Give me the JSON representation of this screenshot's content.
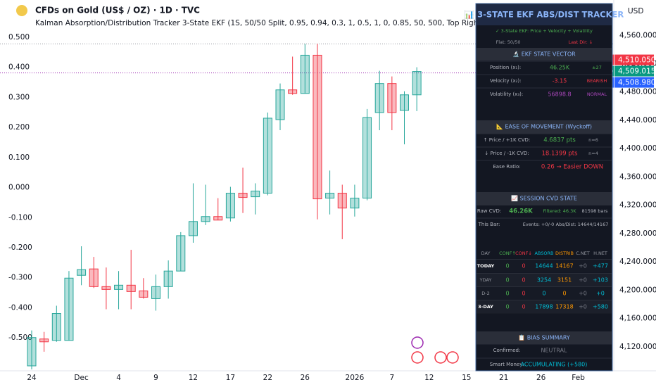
{
  "chart_data": {
    "type": "candlestick",
    "title": "CFDs on Gold (US$ / OZ) · 1D · TVC",
    "subtitle": "Kalman Absorption/Distribution Tracker 3-State EKF (1S, 50/50 Split, 0.95, 0.94, 0.3, 1, 0.5, 1, 0, 0.85, 50, 500, Top Right)",
    "currency": "USD",
    "x": [
      "24",
      null,
      null,
      null,
      "Dec",
      null,
      null,
      "4",
      null,
      null,
      "9",
      null,
      null,
      "12",
      null,
      null,
      "17",
      null,
      null,
      "22",
      null,
      null,
      "26",
      null,
      null,
      null,
      "2026",
      null,
      null,
      "7",
      null,
      null,
      "12",
      null,
      null,
      "15",
      null,
      null,
      "21",
      null,
      null,
      "26",
      null,
      null,
      "Feb"
    ],
    "open": [
      4093,
      4131,
      4129,
      4129,
      4221,
      4230,
      4205,
      4201,
      4207,
      4199,
      4188,
      4205,
      4227,
      4277,
      4297,
      4304,
      4302,
      4337,
      4332,
      4337,
      4441,
      4483,
      4478,
      4532,
      4330,
      4337,
      4316,
      4330,
      4451,
      4492,
      4454,
      4476,
      null,
      null,
      null,
      null,
      null,
      null,
      null,
      null,
      null,
      null,
      null,
      null,
      null
    ],
    "high": [
      4143,
      4141,
      4178,
      4227,
      4262,
      4247,
      4232,
      4227,
      4257,
      4217,
      4222,
      4242,
      4282,
      4351,
      4349,
      4330,
      4346,
      4373,
      4351,
      4451,
      4492,
      4530,
      4548,
      4548,
      4369,
      4349,
      4349,
      4456,
      4510,
      4502,
      4481,
      4515,
      null,
      null,
      null,
      null,
      null,
      null,
      null,
      null,
      null,
      null,
      null,
      null,
      null
    ],
    "low": [
      4088,
      4113,
      4127,
      4129,
      4207,
      4203,
      4173,
      4173,
      4173,
      4188,
      4171,
      4188,
      4227,
      4267,
      4292,
      4299,
      4297,
      4309,
      4307,
      4334,
      4426,
      4476,
      4478,
      4300,
      4307,
      4272,
      4304,
      4327,
      4426,
      4426,
      4406,
      4453,
      null,
      null,
      null,
      null,
      null,
      null,
      null,
      null,
      null,
      null,
      null,
      null,
      null
    ],
    "close": [
      4133,
      4127,
      4167,
      4217,
      4229,
      4205,
      4201,
      4207,
      4198,
      4190,
      4205,
      4227,
      4277,
      4297,
      4304,
      4299,
      4337,
      4331,
      4340,
      4443,
      4483,
      4478,
      4532,
      4329,
      4337,
      4316,
      4330,
      4444,
      4492,
      4451,
      4476,
      4509,
      null,
      null,
      null,
      null,
      null,
      null,
      null,
      null,
      null,
      null,
      null,
      null,
      null
    ],
    "up_color": "#26a69a",
    "down_color": "#f23645",
    "ylim": [
      4088,
      4610
    ],
    "yticks": [
      {
        "value": 4560,
        "label": "4,560.000"
      },
      {
        "value": 4520,
        "label": "4,520.000"
      },
      {
        "value": 4480,
        "label": "4,480.000"
      },
      {
        "value": 4440,
        "label": "4,440.000"
      },
      {
        "value": 4400,
        "label": "4,400.000"
      },
      {
        "value": 4360,
        "label": "4,360.000"
      },
      {
        "value": 4320,
        "label": "4,320.000"
      },
      {
        "value": 4280,
        "label": "4,280.000"
      },
      {
        "value": 4240,
        "label": "4,240.000"
      },
      {
        "value": 4200,
        "label": "4,200.000"
      },
      {
        "value": 4160,
        "label": "4,160.000"
      },
      {
        "value": 4120,
        "label": "4,120.000"
      }
    ],
    "y2lim": [
      -0.605,
      0.624
    ],
    "y2ticks": [
      {
        "value": 0.5,
        "label": "0.500"
      },
      {
        "value": 0.4,
        "label": "0.400"
      },
      {
        "value": 0.3,
        "label": "0.300"
      },
      {
        "value": 0.2,
        "label": "0.200"
      },
      {
        "value": 0.1,
        "label": "0.100"
      },
      {
        "value": 0,
        "label": "0.000"
      },
      {
        "value": -0.1,
        "label": "-0.100"
      },
      {
        "value": -0.2,
        "label": "-0.200"
      },
      {
        "value": -0.3,
        "label": "-0.300"
      },
      {
        "value": -0.4,
        "label": "-0.400"
      },
      {
        "value": -0.5,
        "label": "-0.500"
      }
    ],
    "price_lines": [
      {
        "value": 4548,
        "color": "#9598a1"
      },
      {
        "value": 4507,
        "color": "#9c27b0"
      }
    ],
    "price_tags": [
      {
        "name": "Ask",
        "value": 4510.05,
        "label": "4,510.050",
        "color": "#f23645"
      },
      {
        "name": "GOLD",
        "value": 4509.015,
        "label": "4,509.015",
        "color": "#089981"
      },
      {
        "name": "Bid",
        "value": 4508.98,
        "label": "4,508.980",
        "color": "#2962ff"
      }
    ],
    "grid": false
  },
  "panel": {
    "title": "📊 3-STATE EKF ABS/DIST TRACKER",
    "mode": "✓ 3-State EKF: Price + Velocity + Volatility",
    "flat": "Flat: 50/50",
    "last_dir": "Last Dir: ↓",
    "state": {
      "title": "🔬 EKF STATE VECTOR",
      "rows": [
        [
          "Position (x₁):",
          "46.25K",
          "±27"
        ],
        [
          "Velocity (x₂):",
          "-3.15",
          "BEARISH"
        ],
        [
          "Volatility (x₃):",
          "56898.8",
          "NORMAL"
        ]
      ]
    },
    "ease": {
      "title": "📐 EASE OF MOVEMENT (Wyckoff)",
      "rows": [
        [
          "↑ Price / +1K CVD:",
          "4.6837 pts",
          "n=6"
        ],
        [
          "↓ Price / -1K CVD:",
          "18.1399 pts",
          "n=4"
        ],
        [
          "Ease Ratio:",
          "0.26 → Easier DOWN"
        ]
      ]
    },
    "session": {
      "title": "📈 SESSION CVD STATE",
      "rows": [
        [
          "Raw CVD:",
          "46.26K",
          "Filtered: 46.3K",
          "81598 bars"
        ],
        [
          "This Bar:",
          "Events: +0/-0",
          "Abs/Dist: 14644/14167"
        ]
      ]
    },
    "table": {
      "header": [
        "DAY",
        "CONF↑",
        "CONF↓",
        "ABSORB",
        "DISTRIB",
        "C.NET",
        "H.NET"
      ],
      "rows": [
        [
          "TODAY",
          "0",
          "0",
          "14644",
          "14167",
          "+0",
          "+477"
        ],
        [
          "YDAY",
          "0",
          "0",
          "3254",
          "3151",
          "+0",
          "+103"
        ],
        [
          "D-2",
          "0",
          "0",
          "0",
          "0",
          "+0",
          "+0"
        ],
        [
          "3-DAY",
          "0",
          "0",
          "17898",
          "17318",
          "+0",
          "+580"
        ]
      ]
    },
    "bias": {
      "title": "📋 BIAS SUMMARY",
      "rows": [
        [
          "Confirmed:",
          "NEUTRAL"
        ],
        [
          "Smart Money:",
          "ACCUMULATING (+580)"
        ]
      ]
    }
  }
}
